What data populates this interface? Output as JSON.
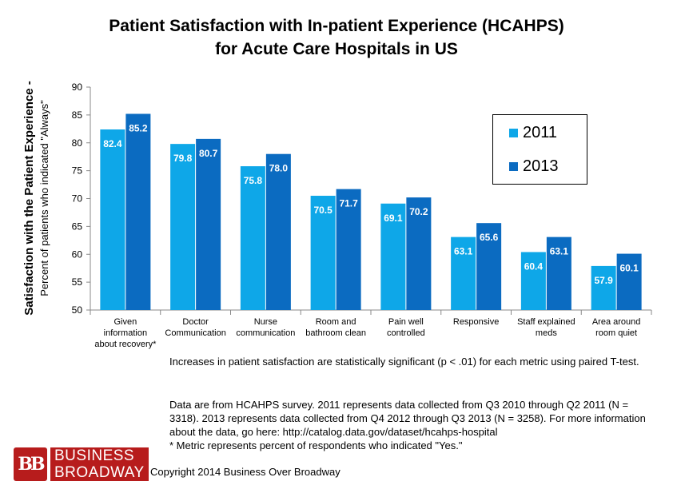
{
  "chart_data": {
    "type": "bar",
    "title_lines": [
      "Patient Satisfaction with In-patient Experience (HCAHPS)",
      "for Acute Care Hospitals in US"
    ],
    "ylabel_main": "Satisfaction with the Patient Experience -",
    "ylabel_sub": "Percent of patients who indicated \"Always\"",
    "xlabel": "",
    "ylim": [
      50,
      90
    ],
    "yticks": [
      50,
      55,
      60,
      65,
      70,
      75,
      80,
      85,
      90
    ],
    "grid": false,
    "legend_position": "top-right",
    "categories": [
      [
        "Given",
        "information",
        "about recovery*"
      ],
      [
        "Doctor",
        "Communication"
      ],
      [
        "Nurse",
        "communication"
      ],
      [
        "Room and",
        "bathroom clean"
      ],
      [
        "Pain well",
        "controlled"
      ],
      [
        "Responsive"
      ],
      [
        "Staff explained",
        "meds"
      ],
      [
        "Area around",
        "room quiet"
      ]
    ],
    "series": [
      {
        "name": "2011",
        "color": "#0ea7e8",
        "values": [
          82.4,
          79.8,
          75.8,
          70.5,
          69.1,
          63.1,
          60.4,
          57.9
        ],
        "labels": [
          "82.4",
          "79.8",
          "75.8",
          "70.5",
          "69.1",
          "63.1",
          "60.4",
          "57.9"
        ]
      },
      {
        "name": "2013",
        "color": "#0b6bc1",
        "values": [
          85.2,
          80.7,
          78.0,
          71.7,
          70.2,
          65.6,
          63.1,
          60.1
        ],
        "labels": [
          "85.2",
          "80.7",
          "78.0",
          "71.7",
          "70.2",
          "65.6",
          "63.1",
          "60.1"
        ]
      }
    ]
  },
  "notes": {
    "line1": "Increases in patient satisfaction are statistically significant (p < .01) for each metric using paired T-test.",
    "line2": "Data are from HCAHPS survey. 2011 represents data collected from Q3 2010 through Q2 2011 (N = 3318). 2013 represents data collected from Q4 2012 through Q3 2013 (N = 3258). For more information about the data, go here: http://catalog.data.gov/dataset/hcahps-hospital",
    "line3": "* Metric represents percent of respondents who indicated \"Yes.\""
  },
  "logo": {
    "mark": "BB",
    "word1": "BUSINESS",
    "word2": "BROADWAY"
  },
  "copyright": "Copyright 2014 Business Over Broadway"
}
